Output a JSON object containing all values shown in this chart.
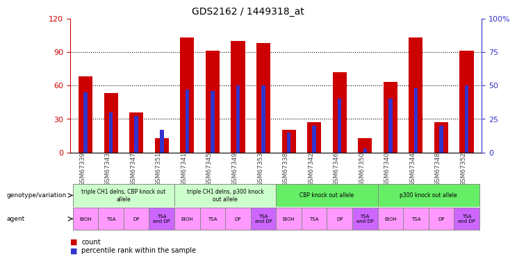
{
  "title": "GDS2162 / 1449318_at",
  "samples": [
    "GSM67339",
    "GSM67343",
    "GSM67347",
    "GSM67351",
    "GSM67341",
    "GSM67345",
    "GSM67349",
    "GSM67353",
    "GSM67338",
    "GSM67342",
    "GSM67346",
    "GSM67350",
    "GSM67340",
    "GSM67344",
    "GSM67348",
    "GSM67352"
  ],
  "count_values": [
    68,
    53,
    36,
    13,
    103,
    91,
    100,
    98,
    20,
    27,
    72,
    13,
    63,
    103,
    27,
    91
  ],
  "percentile_values": [
    45,
    30,
    27,
    17,
    47,
    46,
    50,
    50,
    15,
    20,
    40,
    3,
    40,
    48,
    20,
    50
  ],
  "ylim_left": [
    0,
    120
  ],
  "ylim_right": [
    0,
    100
  ],
  "yticks_left": [
    0,
    30,
    60,
    90,
    120
  ],
  "yticks_right": [
    0,
    25,
    50,
    75,
    100
  ],
  "bar_color_red": "#cc0000",
  "bar_color_blue": "#3333cc",
  "bar_width": 0.55,
  "blue_bar_width": 0.15,
  "genotype_groups": [
    {
      "label": "triple CH1 delns, CBP knock out\nallele",
      "start": 0,
      "end": 4,
      "color": "#ccffcc"
    },
    {
      "label": "triple CH1 delns, p300 knock\nout allele",
      "start": 4,
      "end": 8,
      "color": "#ccffcc"
    },
    {
      "label": "CBP knock out allele",
      "start": 8,
      "end": 12,
      "color": "#66ee66"
    },
    {
      "label": "p300 knock out allele",
      "start": 12,
      "end": 16,
      "color": "#66ee66"
    }
  ],
  "agent_labels": [
    "EtOH",
    "TSA",
    "DP",
    "TSA\nand DP",
    "EtOH",
    "TSA",
    "DP",
    "TSA\nand DP",
    "EtOH",
    "TSA",
    "DP",
    "TSA\nand DP",
    "EtOH",
    "TSA",
    "DP",
    "TSA\nand DP"
  ],
  "agent_colors": [
    "#ff99ff",
    "#ff99ff",
    "#ff99ff",
    "#cc66ff",
    "#ff99ff",
    "#ff99ff",
    "#ff99ff",
    "#cc66ff",
    "#ff99ff",
    "#ff99ff",
    "#ff99ff",
    "#cc66ff",
    "#ff99ff",
    "#ff99ff",
    "#ff99ff",
    "#cc66ff"
  ],
  "xticklabel_color": "#444444",
  "left_ylabel_color": "#cc0000",
  "right_ylabel_color": "#3333cc"
}
